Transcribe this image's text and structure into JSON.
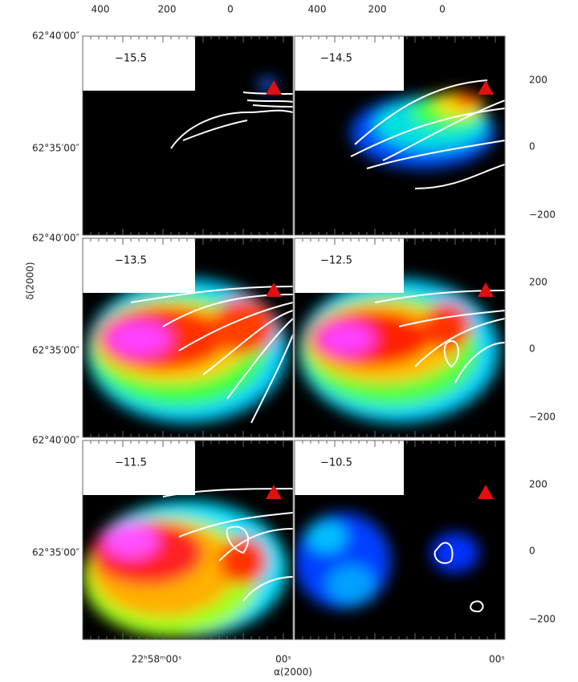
{
  "panels": [
    {
      "label": "−15.5"
    },
    {
      "label": "−14.5"
    },
    {
      "label": "−13.5"
    },
    {
      "label": "−12.5"
    },
    {
      "label": "−11.5"
    },
    {
      "label": "−10.5"
    }
  ],
  "axes": {
    "top_ticks": [
      "400",
      "200",
      "0"
    ],
    "right_ticks": [
      "200",
      "0",
      "−200"
    ],
    "left_ticks": [
      "62°40′00″",
      "62°35′00″"
    ],
    "bottom_ticks": [
      "22ʰ58ᵐ00ˢ",
      "00ˢ"
    ],
    "x_label": "α(2000)",
    "y_label": "δ(2000)"
  }
}
